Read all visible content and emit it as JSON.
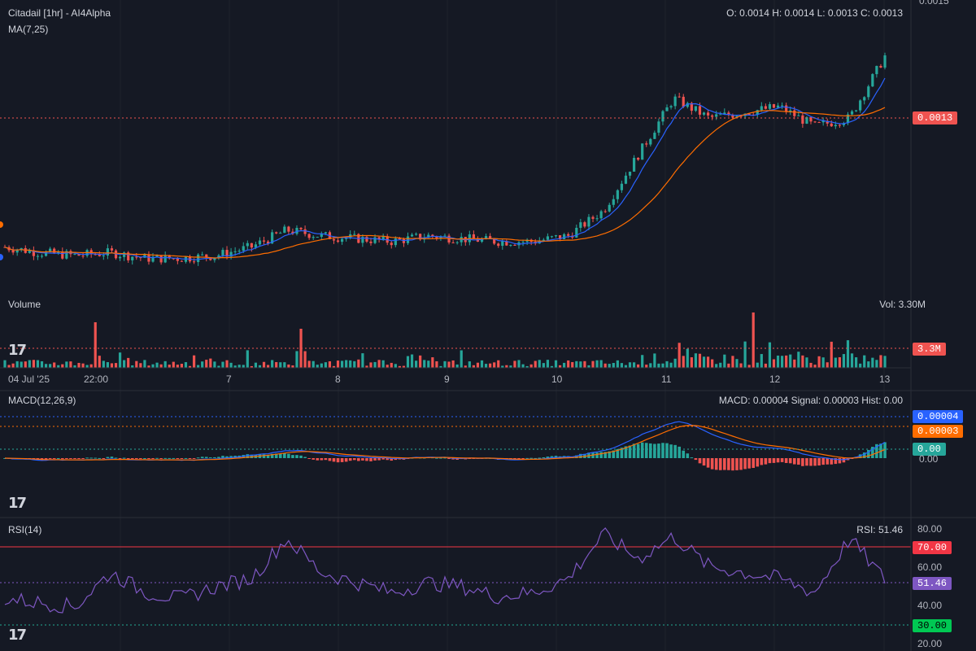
{
  "header": {
    "title": "Citadail [1hr] - AI4Alpha",
    "ma_label": "MA(7,25)",
    "ohlc": "O: 0.0014 H: 0.0014 L: 0.0013 C: 0.0013"
  },
  "price_axis": {
    "top_tick": "0.0015",
    "last_price_tag": "0.0013"
  },
  "volume": {
    "label": "Volume",
    "value_text": "Vol: 3.30M",
    "tag": "3.3M"
  },
  "x_axis": {
    "labels": [
      "04 Jul '25",
      "22:00",
      "7",
      "8",
      "9",
      "10",
      "11",
      "12",
      "13"
    ]
  },
  "macd": {
    "label": "MACD(12,26,9)",
    "value_text": "MACD: 0.00004 Signal: 0.00003 Hist: 0.00",
    "tags": {
      "macd": "0.00004",
      "signal": "0.00003",
      "hist": "0.00"
    },
    "zero_tick": "0.00"
  },
  "rsi": {
    "label": "RSI(14)",
    "value_text": "RSI: 51.46",
    "ticks": [
      "80.00",
      "60.00",
      "40.00",
      "20.00"
    ],
    "tags": {
      "upper": "70.00",
      "value": "51.46",
      "lower": "30.00"
    }
  },
  "colors": {
    "background": "#151924",
    "up": "#26a69a",
    "down": "#ef5350",
    "ma7": "#2962ff",
    "ma25": "#ff6d00",
    "rsi": "#7e57c2",
    "rsi_upper": "#f23645",
    "rsi_lower": "#22ab94"
  },
  "chart_data": {
    "type": "candlestick",
    "interval": "1hr",
    "x_range": [
      "04 Jul '25",
      "13"
    ],
    "price_axis_top": 0.0015,
    "last_price": 0.0013,
    "ohlc_last": {
      "open": 0.0014,
      "high": 0.0014,
      "low": 0.0013,
      "close": 0.0013
    },
    "volume_last": "3.30M",
    "macd_last": {
      "macd": 4e-05,
      "signal": 3e-05,
      "hist": 0.0
    },
    "rsi_last": 51.46,
    "rsi_levels": {
      "upper": 70,
      "lower": 30
    },
    "rsi_axis": [
      20,
      80
    ],
    "price_trend": [
      0.00062,
      0.0006,
      0.00059,
      0.0006,
      0.00058,
      0.00058,
      0.00059,
      0.00062,
      0.00068,
      0.00066,
      0.00065,
      0.00064,
      0.00066,
      0.00065,
      0.00064,
      0.00064,
      0.00066,
      0.00075,
      0.00095,
      0.00115,
      0.00108,
      0.0011,
      0.00112,
      0.00105,
      0.00108,
      0.0013
    ],
    "rsi_trend": [
      42,
      40,
      38,
      55,
      45,
      42,
      48,
      52,
      72,
      55,
      50,
      45,
      50,
      48,
      43,
      45,
      52,
      74,
      62,
      73,
      58,
      55,
      52,
      45,
      72,
      51.46
    ]
  }
}
